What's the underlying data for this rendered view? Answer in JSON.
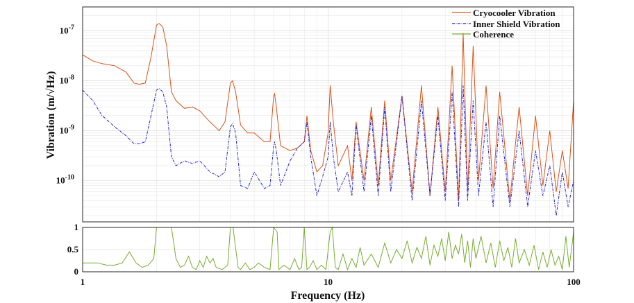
{
  "chart_data": [
    {
      "type": "line",
      "panel": "psd",
      "ylabel": "Vibration (m/√Hz)",
      "xscale": "log",
      "yscale": "log",
      "xlim": [
        1,
        100
      ],
      "ylim": [
        1.5e-11,
        3e-07
      ],
      "grid": true,
      "legend": "top-right",
      "yticks": [
        {
          "label_base": "10",
          "label_exp": "-7"
        },
        {
          "label_base": "10",
          "label_exp": "-8"
        },
        {
          "label_base": "10",
          "label_exp": "-9"
        },
        {
          "label_base": "10",
          "label_exp": "-10"
        }
      ],
      "series": [
        {
          "name": "Cryocooler Vibration",
          "color": "#d95319",
          "x": [
            1.0,
            1.1,
            1.2,
            1.35,
            1.5,
            1.62,
            1.7,
            1.8,
            1.9,
            2.0,
            2.05,
            2.12,
            2.2,
            2.3,
            2.4,
            2.6,
            2.8,
            3.0,
            3.3,
            3.6,
            3.8,
            4.0,
            4.08,
            4.2,
            4.4,
            4.7,
            5.0,
            5.5,
            5.8,
            6.0,
            6.05,
            6.15,
            6.4,
            7.0,
            7.5,
            8.0,
            8.2,
            8.5,
            9.0,
            9.5,
            10.0,
            10.2,
            10.5,
            11,
            12,
            12.5,
            13,
            14,
            15,
            16,
            17,
            18,
            20,
            22,
            24,
            26,
            28,
            30,
            32,
            34,
            35.5,
            37,
            39,
            41,
            44,
            47,
            50,
            55,
            60,
            65,
            70,
            75,
            80,
            85,
            90,
            95,
            100
          ],
          "y": [
            3.3e-08,
            2.5e-08,
            2.2e-08,
            2e-08,
            1.5e-08,
            9e-09,
            8.5e-09,
            9e-09,
            3e-08,
            1.3e-07,
            1.4e-07,
            1.2e-07,
            5e-08,
            6e-09,
            4e-09,
            2.8e-09,
            3e-09,
            2.5e-09,
            1.5e-09,
            1e-09,
            1.5e-09,
            9e-09,
            1e-08,
            6e-09,
            1.3e-09,
            9e-10,
            9e-10,
            6e-10,
            6e-10,
            5e-09,
            5.5e-09,
            3e-09,
            5e-10,
            4e-10,
            4.5e-10,
            6e-10,
            2e-09,
            4e-10,
            1.5e-10,
            2e-10,
            9e-10,
            8e-09,
            1.5e-09,
            2e-10,
            5e-10,
            1e-10,
            1.5e-09,
            1e-10,
            3e-09,
            8e-11,
            4e-09,
            1e-10,
            5e-09,
            6e-11,
            8e-09,
            5e-11,
            3e-09,
            6e-11,
            2e-08,
            4e-11,
            9e-08,
            6e-11,
            5e-08,
            1e-10,
            8e-09,
            7e-11,
            6e-09,
            4e-11,
            3e-09,
            5e-11,
            2e-09,
            8e-11,
            1e-09,
            6e-11,
            4e-10,
            7e-11,
            4e-09
          ]
        },
        {
          "name": "Inner Shield Vibration",
          "color": "#1f1fd6",
          "x": [
            1.0,
            1.1,
            1.2,
            1.35,
            1.5,
            1.62,
            1.7,
            1.8,
            1.9,
            2.0,
            2.05,
            2.12,
            2.2,
            2.3,
            2.4,
            2.6,
            2.8,
            3.0,
            3.3,
            3.6,
            3.8,
            4.0,
            4.08,
            4.2,
            4.4,
            4.7,
            5.0,
            5.5,
            5.8,
            6.0,
            6.05,
            6.15,
            6.4,
            7.0,
            7.5,
            8.0,
            8.2,
            8.5,
            9.0,
            9.5,
            10.0,
            10.2,
            10.5,
            11,
            12,
            12.5,
            13,
            14,
            15,
            16,
            17,
            18,
            20,
            22,
            24,
            26,
            28,
            30,
            32,
            34,
            35.5,
            37,
            39,
            41,
            44,
            47,
            50,
            55,
            60,
            65,
            70,
            75,
            80,
            85,
            90,
            95,
            100
          ],
          "y": [
            6.5e-09,
            4e-09,
            2e-09,
            1.2e-09,
            8e-10,
            5.5e-10,
            5.5e-10,
            6e-10,
            2e-09,
            6.5e-09,
            7e-09,
            6e-09,
            3e-09,
            3e-10,
            2e-10,
            2.5e-10,
            2.2e-10,
            2.5e-10,
            1.5e-10,
            1.2e-10,
            1.5e-10,
            1.2e-09,
            1.4e-09,
            9e-10,
            8e-11,
            7e-11,
            1.5e-10,
            7e-11,
            8e-11,
            5e-10,
            6e-10,
            4e-10,
            8e-11,
            2.5e-10,
            4.5e-10,
            6e-10,
            1.5e-09,
            3e-10,
            5e-11,
            1.2e-10,
            3e-10,
            1.5e-09,
            3e-10,
            6e-11,
            1.5e-10,
            5e-11,
            1.3e-09,
            6e-11,
            2e-09,
            5e-11,
            3e-09,
            6e-11,
            5e-09,
            4e-11,
            4e-09,
            5e-11,
            2e-09,
            4e-11,
            6e-09,
            3e-11,
            8e-09,
            4e-11,
            4e-09,
            5e-11,
            1.5e-09,
            3e-11,
            2e-09,
            3e-11,
            1e-09,
            3e-11,
            4e-10,
            5e-11,
            2e-10,
            2e-11,
            1.5e-10,
            3e-11,
            1e-10
          ]
        },
        {
          "name": "Coherence",
          "color": "#77ac30",
          "x": [],
          "y": []
        }
      ]
    },
    {
      "type": "line",
      "panel": "coherence",
      "xlabel": "Frequency (Hz)",
      "xscale": "log",
      "xlim": [
        1,
        100
      ],
      "ylim": [
        0,
        1
      ],
      "grid": true,
      "yticks": [
        "0",
        "0.5",
        "1"
      ],
      "xticks": [
        "1",
        "10",
        "100"
      ],
      "series": [
        {
          "name": "Coherence",
          "color": "#77ac30",
          "x": [
            1.0,
            1.15,
            1.25,
            1.35,
            1.45,
            1.55,
            1.65,
            1.75,
            1.85,
            1.95,
            2.0,
            2.1,
            2.2,
            2.3,
            2.4,
            2.5,
            2.6,
            2.7,
            2.8,
            2.9,
            3.0,
            3.1,
            3.2,
            3.3,
            3.4,
            3.5,
            3.7,
            3.9,
            4.0,
            4.1,
            4.3,
            4.4,
            4.6,
            4.8,
            5.0,
            5.2,
            5.5,
            5.8,
            6.0,
            6.2,
            6.3,
            6.6,
            7.0,
            7.3,
            7.6,
            7.8,
            8.0,
            8.2,
            8.4,
            8.7,
            9.0,
            9.4,
            9.8,
            10.2,
            10.4,
            10.7,
            11,
            11.5,
            12,
            12.5,
            13,
            13.5,
            14,
            15,
            16,
            17,
            18,
            19,
            20,
            21,
            22,
            23,
            24,
            25,
            26,
            27,
            28,
            29,
            30,
            31,
            32,
            33,
            34,
            35,
            36,
            37,
            38,
            39,
            40,
            42,
            44,
            46,
            48,
            50,
            52,
            54,
            56,
            58,
            60,
            63,
            66,
            69,
            72,
            75,
            78,
            81,
            84,
            87,
            90,
            93,
            96,
            100
          ],
          "y": [
            0.2,
            0.2,
            0.15,
            0.15,
            0.2,
            0.45,
            0.2,
            0.1,
            0.15,
            0.3,
            1.0,
            1.0,
            1.0,
            1.0,
            0.3,
            0.1,
            0.15,
            0.35,
            0.1,
            0.05,
            0.25,
            0.1,
            0.35,
            0.2,
            0.3,
            0.1,
            0.05,
            0.15,
            1.0,
            1.0,
            0.1,
            0.05,
            0.2,
            0.05,
            0.1,
            0.2,
            0.1,
            0.05,
            1.0,
            0.9,
            0.05,
            0.15,
            0.05,
            0.3,
            0.05,
            0.1,
            1.0,
            0.05,
            0.1,
            0.25,
            0.05,
            0.15,
            0.05,
            0.9,
            1.0,
            0.1,
            0.05,
            0.4,
            0.05,
            0.3,
            0.1,
            0.55,
            0.15,
            0.4,
            0.1,
            0.65,
            0.2,
            0.5,
            0.3,
            0.7,
            0.2,
            0.55,
            0.3,
            0.8,
            0.15,
            0.6,
            0.35,
            0.75,
            0.25,
            0.9,
            0.3,
            0.6,
            0.4,
            0.85,
            0.2,
            0.7,
            0.1,
            0.75,
            0.3,
            0.8,
            0.2,
            0.65,
            0.1,
            0.7,
            0.25,
            0.55,
            0.1,
            0.75,
            0.2,
            0.5,
            0.15,
            0.6,
            0.05,
            0.45,
            0.1,
            0.5,
            0.15,
            0.35,
            0.05,
            0.8,
            0.1,
            0.9
          ]
        }
      ]
    }
  ]
}
